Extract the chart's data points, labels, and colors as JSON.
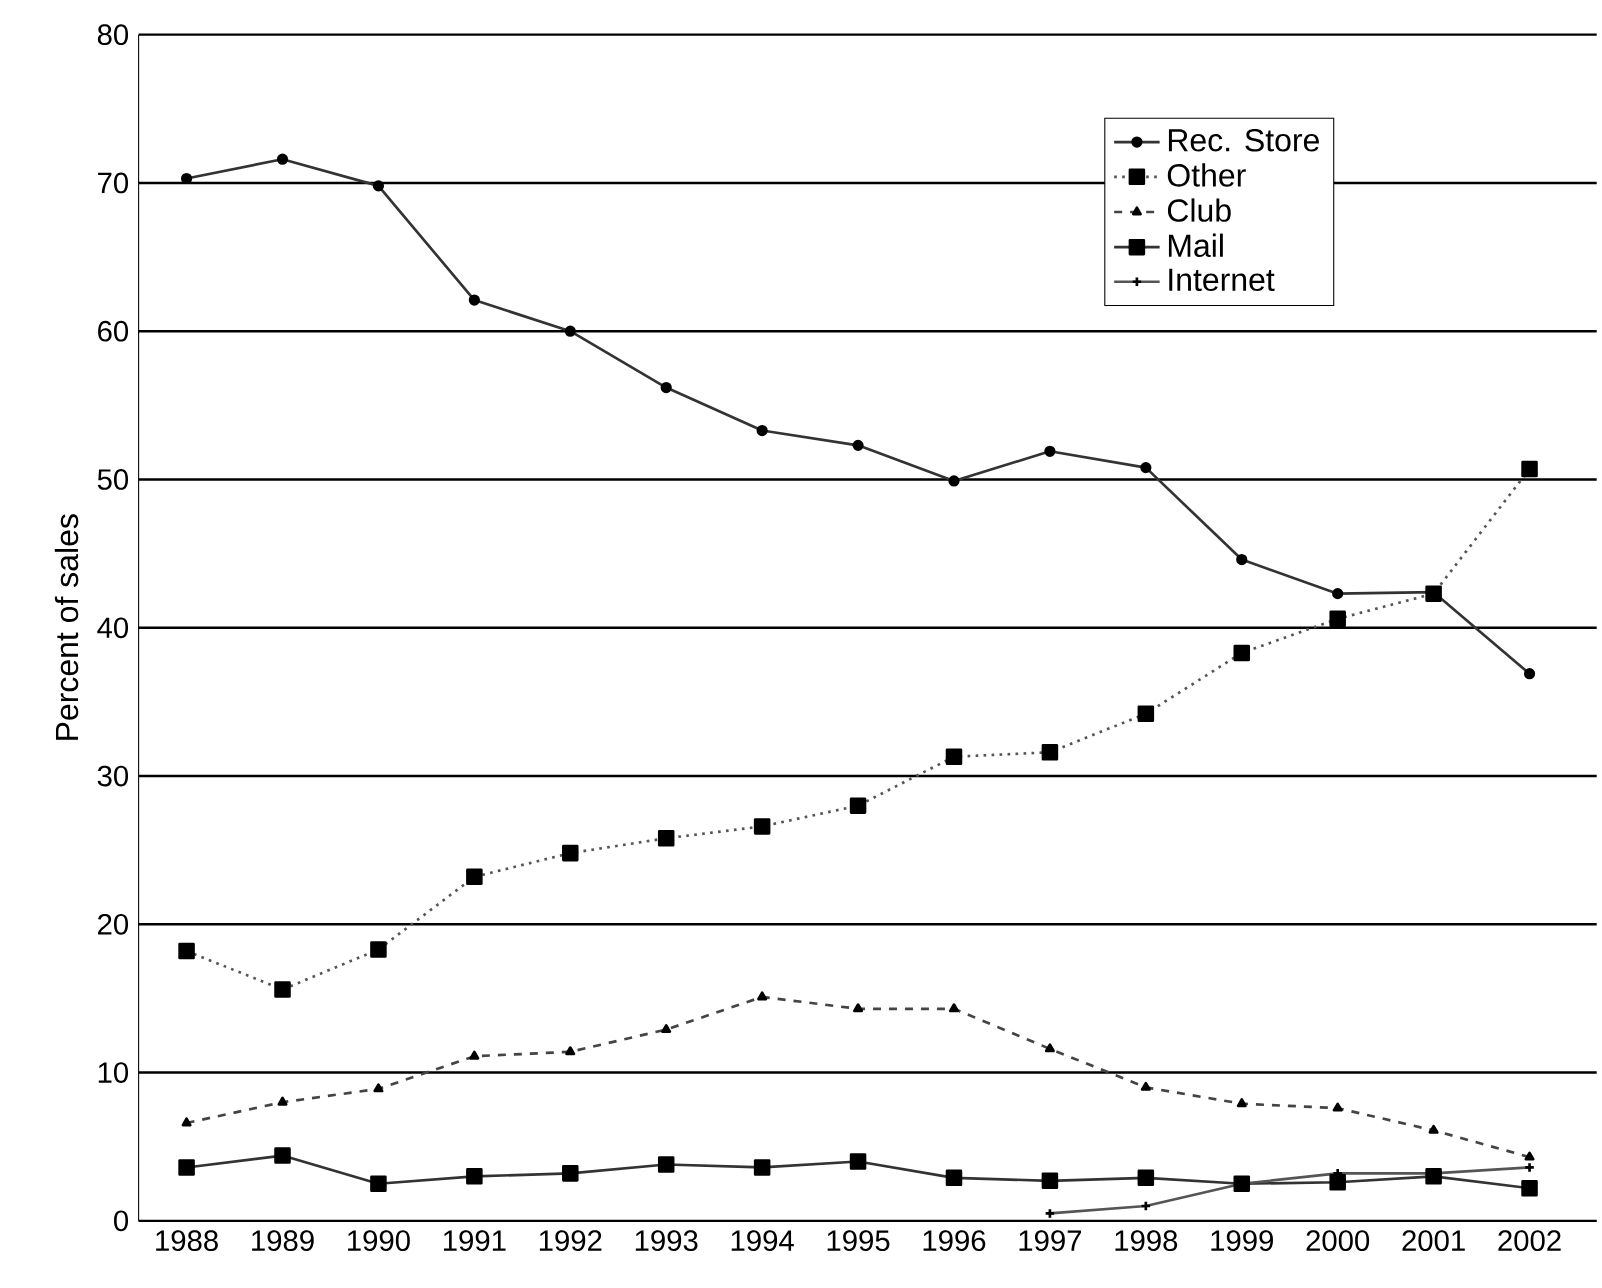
{
  "chart_data": {
    "type": "line",
    "ylabel": "Percent of sales",
    "categories": [
      "1988",
      "1989",
      "1990",
      "1991",
      "1992",
      "1993",
      "1994",
      "1995",
      "1996",
      "1997",
      "1998",
      "1999",
      "2000",
      "2001",
      "2002"
    ],
    "series": [
      {
        "name": "Rec. Store",
        "color": "#333333",
        "marker": "circle",
        "line_style": "solid",
        "values": [
          70.3,
          71.6,
          69.8,
          62.1,
          60.0,
          56.2,
          53.3,
          52.3,
          49.9,
          51.9,
          50.8,
          44.6,
          42.3,
          42.4,
          36.9
        ]
      },
      {
        "name": "Other",
        "color": "#555555",
        "marker": "square",
        "line_style": "dotted",
        "values": [
          18.2,
          15.6,
          18.3,
          23.2,
          24.8,
          25.8,
          26.6,
          28.0,
          31.3,
          31.6,
          34.2,
          38.3,
          40.6,
          42.3,
          50.7
        ]
      },
      {
        "name": "Club",
        "color": "#444444",
        "marker": "triangle",
        "line_style": "dashed",
        "values": [
          6.6,
          8.0,
          8.9,
          11.1,
          11.4,
          12.9,
          15.1,
          14.3,
          14.3,
          11.6,
          9.0,
          7.9,
          7.6,
          6.1,
          4.3
        ]
      },
      {
        "name": "Mail",
        "color": "#333333",
        "marker": "square",
        "line_style": "solid",
        "values": [
          3.6,
          4.4,
          2.5,
          3.0,
          3.2,
          3.8,
          3.6,
          4.0,
          2.9,
          2.7,
          2.9,
          2.5,
          2.6,
          3.0,
          2.2
        ]
      },
      {
        "name": "Internet",
        "color": "#555555",
        "marker": "cross",
        "line_style": "solid",
        "values": [
          null,
          null,
          null,
          null,
          null,
          null,
          null,
          null,
          null,
          0.5,
          1.0,
          2.5,
          3.2,
          3.2,
          3.6
        ]
      }
    ],
    "ylim": [
      0,
      80
    ],
    "yticks": [
      0,
      10,
      20,
      30,
      40,
      50,
      60,
      70,
      80
    ],
    "grid": "y",
    "legend": "top right"
  }
}
